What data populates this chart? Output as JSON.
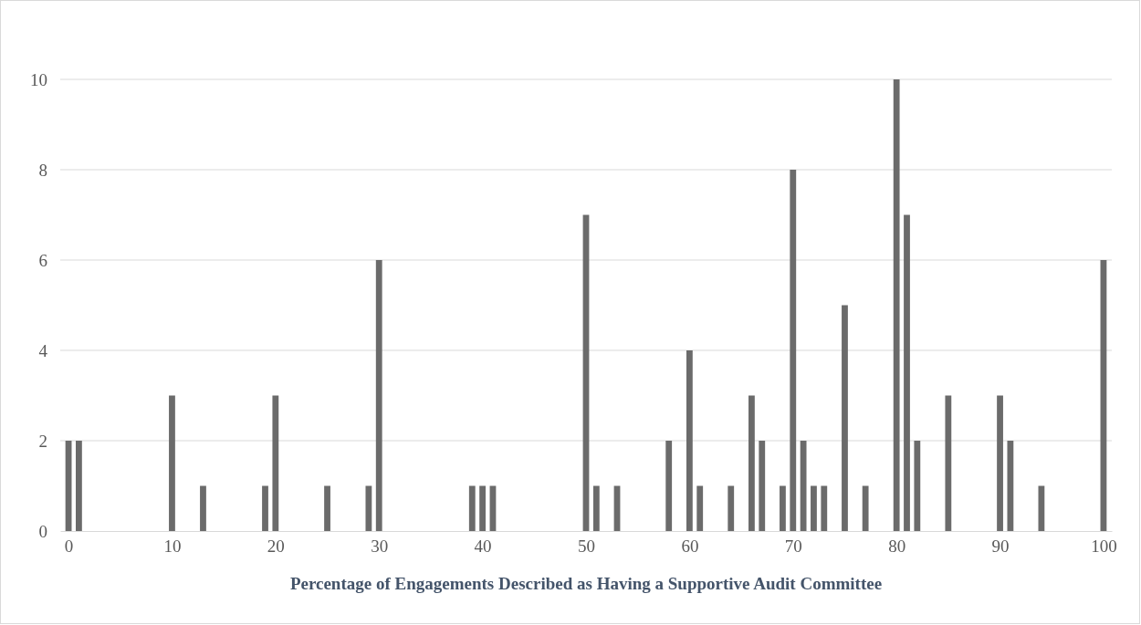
{
  "chart_data": {
    "type": "bar",
    "xlabel": "Percentage of Engagements Described as Having a Supportive Audit Committee",
    "x": [
      0,
      1,
      10,
      13,
      19,
      20,
      25,
      29,
      30,
      39,
      40,
      41,
      50,
      51,
      53,
      58,
      60,
      61,
      64,
      66,
      67,
      69,
      70,
      71,
      72,
      73,
      75,
      77,
      80,
      81,
      82,
      85,
      90,
      91,
      94,
      100
    ],
    "values": [
      2,
      2,
      3,
      1,
      1,
      3,
      1,
      1,
      6,
      1,
      1,
      1,
      7,
      1,
      1,
      2,
      4,
      1,
      1,
      3,
      2,
      1,
      8,
      2,
      1,
      1,
      5,
      1,
      10,
      7,
      2,
      3,
      3,
      2,
      1,
      6
    ],
    "color": "#6b6b6b",
    "xlim": [
      -0.8,
      100.8
    ],
    "xticks": [
      0,
      10,
      20,
      30,
      40,
      50,
      60,
      70,
      80,
      90,
      100
    ],
    "ylim": [
      0,
      10
    ],
    "yticks": [
      0,
      2,
      4,
      6,
      8,
      10
    ],
    "grid": "y"
  }
}
